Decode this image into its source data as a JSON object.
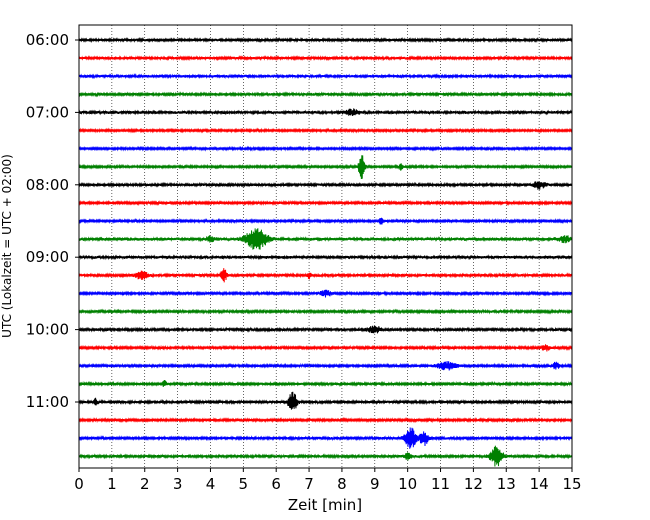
{
  "chart_data": {
    "type": "line",
    "title": "",
    "xlabel": "Zeit  [min]",
    "ylabel": "UTC (Lokalzeit = UTC + 02:00)",
    "xlim": [
      0,
      15
    ],
    "x_ticks": [
      "0",
      "1",
      "2",
      "3",
      "4",
      "5",
      "6",
      "7",
      "8",
      "9",
      "10",
      "11",
      "12",
      "13",
      "14",
      "15"
    ],
    "y_tick_labels": [
      "06:00",
      "07:00",
      "08:00",
      "09:00",
      "10:00",
      "11:00"
    ],
    "y_tick_trace_index": [
      0,
      4,
      8,
      12,
      16,
      20
    ],
    "grid": "vertical dotted",
    "minutes_per_trace": 15,
    "colors": [
      "#000000",
      "#ff0000",
      "#0000ff",
      "#008000"
    ],
    "traces": [
      {
        "start": "06:00",
        "color": "#000000",
        "noise": 1.0,
        "events": []
      },
      {
        "start": "06:15",
        "color": "#ff0000",
        "noise": 1.0,
        "events": []
      },
      {
        "start": "06:30",
        "color": "#0000ff",
        "noise": 1.1,
        "events": []
      },
      {
        "start": "06:45",
        "color": "#008000",
        "noise": 1.0,
        "events": []
      },
      {
        "start": "07:00",
        "color": "#000000",
        "noise": 1.1,
        "events": [
          {
            "t": 8.3,
            "amp": 3,
            "dur": 0.4
          }
        ]
      },
      {
        "start": "07:15",
        "color": "#ff0000",
        "noise": 0.8,
        "events": []
      },
      {
        "start": "07:30",
        "color": "#0000ff",
        "noise": 0.8,
        "events": []
      },
      {
        "start": "07:45",
        "color": "#008000",
        "noise": 0.8,
        "events": [
          {
            "t": 8.6,
            "amp": 12,
            "dur": 0.15
          },
          {
            "t": 9.8,
            "amp": 3,
            "dur": 0.1
          }
        ]
      },
      {
        "start": "08:00",
        "color": "#000000",
        "noise": 1.0,
        "events": [
          {
            "t": 14.0,
            "amp": 4,
            "dur": 0.3
          }
        ]
      },
      {
        "start": "08:15",
        "color": "#ff0000",
        "noise": 0.9,
        "events": []
      },
      {
        "start": "08:30",
        "color": "#0000ff",
        "noise": 0.8,
        "events": [
          {
            "t": 9.2,
            "amp": 3,
            "dur": 0.15
          }
        ]
      },
      {
        "start": "08:45",
        "color": "#008000",
        "noise": 1.2,
        "events": [
          {
            "t": 5.4,
            "amp": 12,
            "dur": 0.5
          },
          {
            "t": 4.0,
            "amp": 3,
            "dur": 0.2
          },
          {
            "t": 14.8,
            "amp": 3,
            "dur": 0.3
          }
        ]
      },
      {
        "start": "09:00",
        "color": "#000000",
        "noise": 1.2,
        "events": []
      },
      {
        "start": "09:15",
        "color": "#ff0000",
        "noise": 1.0,
        "events": [
          {
            "t": 1.9,
            "amp": 4,
            "dur": 0.3
          },
          {
            "t": 4.4,
            "amp": 7,
            "dur": 0.15
          },
          {
            "t": 7.0,
            "amp": 3,
            "dur": 0.1
          }
        ]
      },
      {
        "start": "09:30",
        "color": "#0000ff",
        "noise": 0.9,
        "events": [
          {
            "t": 7.5,
            "amp": 3,
            "dur": 0.3
          }
        ]
      },
      {
        "start": "09:45",
        "color": "#008000",
        "noise": 0.9,
        "events": []
      },
      {
        "start": "10:00",
        "color": "#000000",
        "noise": 1.0,
        "events": [
          {
            "t": 9.0,
            "amp": 3,
            "dur": 0.4
          }
        ]
      },
      {
        "start": "10:15",
        "color": "#ff0000",
        "noise": 0.9,
        "events": [
          {
            "t": 14.2,
            "amp": 3,
            "dur": 0.2
          }
        ]
      },
      {
        "start": "10:30",
        "color": "#0000ff",
        "noise": 0.9,
        "events": [
          {
            "t": 11.2,
            "amp": 4,
            "dur": 0.5
          },
          {
            "t": 14.5,
            "amp": 3,
            "dur": 0.2
          }
        ]
      },
      {
        "start": "10:45",
        "color": "#008000",
        "noise": 1.0,
        "events": [
          {
            "t": 2.6,
            "amp": 3,
            "dur": 0.1
          }
        ]
      },
      {
        "start": "11:00",
        "color": "#000000",
        "noise": 1.0,
        "events": [
          {
            "t": 6.5,
            "amp": 11,
            "dur": 0.2
          },
          {
            "t": 0.5,
            "amp": 3,
            "dur": 0.1
          }
        ]
      },
      {
        "start": "11:15",
        "color": "#ff0000",
        "noise": 0.9,
        "events": []
      },
      {
        "start": "11:30",
        "color": "#0000ff",
        "noise": 1.0,
        "events": [
          {
            "t": 10.1,
            "amp": 10,
            "dur": 0.3
          },
          {
            "t": 10.5,
            "amp": 7,
            "dur": 0.2
          }
        ]
      },
      {
        "start": "11:45",
        "color": "#008000",
        "noise": 1.0,
        "events": [
          {
            "t": 12.7,
            "amp": 11,
            "dur": 0.3
          },
          {
            "t": 10.0,
            "amp": 3,
            "dur": 0.2
          }
        ]
      }
    ]
  }
}
